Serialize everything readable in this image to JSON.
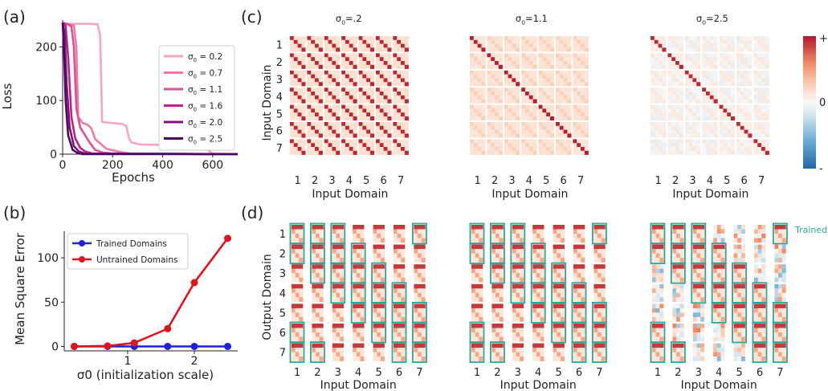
{
  "panels": {
    "a": {
      "tag": "(a)"
    },
    "b": {
      "tag": "(b)"
    },
    "c": {
      "tag": "(c)"
    },
    "d": {
      "tag": "(d)"
    }
  },
  "chart_data": [
    {
      "id": "a",
      "type": "line",
      "xlabel": "Epochs",
      "ylabel": "Loss",
      "xlim": [
        0,
        700
      ],
      "ylim": [
        0,
        250
      ],
      "xticks": [
        0,
        200,
        400,
        600
      ],
      "yticks": [
        0,
        100,
        200
      ],
      "legend_loc": "top-right",
      "series": [
        {
          "name": "σ0 = 0.2",
          "color": "#f6a6be",
          "points": [
            [
              0,
              245
            ],
            [
              8,
              244
            ],
            [
              25,
              243
            ],
            [
              60,
              243
            ],
            [
              110,
              243
            ],
            [
              140,
              242
            ],
            [
              150,
              220
            ],
            [
              158,
              60
            ],
            [
              200,
              58
            ],
            [
              240,
              56
            ],
            [
              255,
              52
            ],
            [
              265,
              30
            ],
            [
              275,
              22
            ],
            [
              310,
              18
            ],
            [
              400,
              17
            ],
            [
              500,
              17
            ],
            [
              550,
              16
            ],
            [
              580,
              8
            ],
            [
              600,
              1
            ],
            [
              700,
              0
            ]
          ]
        },
        {
          "name": "σ0 = 0.7",
          "color": "#ef78a4",
          "points": [
            [
              0,
              245
            ],
            [
              15,
              243
            ],
            [
              30,
              242
            ],
            [
              45,
              240
            ],
            [
              55,
              200
            ],
            [
              62,
              70
            ],
            [
              80,
              58
            ],
            [
              100,
              55
            ],
            [
              115,
              48
            ],
            [
              130,
              28
            ],
            [
              150,
              20
            ],
            [
              175,
              10
            ],
            [
              200,
              7
            ],
            [
              230,
              4
            ],
            [
              270,
              1
            ],
            [
              700,
              0
            ]
          ]
        },
        {
          "name": "σ0 = 1.1",
          "color": "#de4f96",
          "points": [
            [
              0,
              245
            ],
            [
              20,
              242
            ],
            [
              35,
              238
            ],
            [
              45,
              200
            ],
            [
              55,
              85
            ],
            [
              70,
              50
            ],
            [
              90,
              35
            ],
            [
              110,
              20
            ],
            [
              130,
              8
            ],
            [
              160,
              3
            ],
            [
              200,
              1
            ],
            [
              700,
              0
            ]
          ]
        },
        {
          "name": "σ0 = 1.6",
          "color": "#b8238a",
          "points": [
            [
              0,
              245
            ],
            [
              12,
              240
            ],
            [
              22,
              180
            ],
            [
              35,
              70
            ],
            [
              50,
              30
            ],
            [
              70,
              12
            ],
            [
              90,
              5
            ],
            [
              120,
              1
            ],
            [
              700,
              0
            ]
          ]
        },
        {
          "name": "σ0 = 2.0",
          "color": "#82107a",
          "points": [
            [
              0,
              245
            ],
            [
              8,
              225
            ],
            [
              16,
              130
            ],
            [
              28,
              50
            ],
            [
              45,
              15
            ],
            [
              65,
              5
            ],
            [
              90,
              1
            ],
            [
              700,
              0
            ]
          ]
        },
        {
          "name": "σ0 = 2.5",
          "color": "#4a0a5e",
          "points": [
            [
              0,
              245
            ],
            [
              5,
              200
            ],
            [
              12,
              100
            ],
            [
              22,
              35
            ],
            [
              40,
              8
            ],
            [
              60,
              2
            ],
            [
              80,
              0
            ],
            [
              700,
              0
            ]
          ]
        }
      ]
    },
    {
      "id": "b",
      "type": "line",
      "xlabel": "σ0 (initialization scale)",
      "ylabel": "Mean Square Error",
      "xlim": [
        0.05,
        2.65
      ],
      "ylim": [
        -5,
        130
      ],
      "xticks": [
        1,
        2
      ],
      "yticks": [
        0,
        50,
        100
      ],
      "legend_loc": "top-left",
      "series": [
        {
          "name": "Trained Domains",
          "color": "#1f1fe0",
          "x": [
            0.2,
            0.7,
            1.1,
            1.6,
            2.0,
            2.5
          ],
          "y": [
            0,
            0,
            0,
            0,
            0,
            0
          ]
        },
        {
          "name": "Untrained Domains",
          "color": "#e0141e",
          "x": [
            0.2,
            0.7,
            1.1,
            1.6,
            2.0,
            2.5
          ],
          "y": [
            0,
            0.5,
            4,
            20,
            72,
            122
          ]
        }
      ]
    }
  ],
  "panel_c": {
    "titles": [
      "σ0=.2",
      "σ0=1.1",
      "σ0=2.5"
    ],
    "ylabel": "Input Domain",
    "xlabel": "Input Domain",
    "domain_labels": [
      "1",
      "2",
      "3",
      "4",
      "5",
      "6",
      "7"
    ],
    "colorbar": {
      "top": "+",
      "mid": "0",
      "bottom": "-",
      "colors": [
        "#b2182b",
        "#ef8a62",
        "#fddbc7",
        "#f7f7f7",
        "#d1e5f0",
        "#67a9cf",
        "#2166ac"
      ]
    }
  },
  "panel_d": {
    "ylabel": "Output Domain",
    "xlabel": "Input Domain",
    "domain_labels": [
      "1",
      "2",
      "3",
      "4",
      "5",
      "6",
      "7"
    ],
    "trained_label": "Trained",
    "trained_color": "#2ea596",
    "trained_mask": [
      [
        1,
        1,
        1,
        0,
        0,
        0,
        1
      ],
      [
        1,
        1,
        1,
        1,
        0,
        0,
        0
      ],
      [
        0,
        1,
        1,
        1,
        1,
        0,
        0
      ],
      [
        0,
        0,
        1,
        1,
        1,
        1,
        0
      ],
      [
        0,
        0,
        0,
        1,
        1,
        1,
        1
      ],
      [
        1,
        0,
        0,
        0,
        1,
        1,
        1
      ],
      [
        1,
        1,
        0,
        0,
        0,
        1,
        1
      ]
    ]
  }
}
